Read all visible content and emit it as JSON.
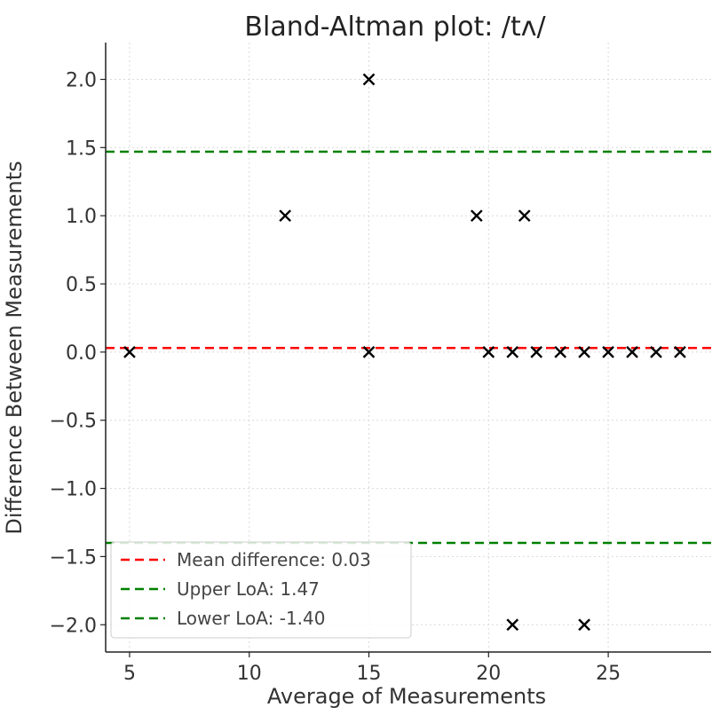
{
  "chart_data": {
    "type": "scatter",
    "title": "Bland-Altman plot: /tʌ/",
    "xlabel": "Average of Measurements",
    "ylabel": "Difference Between Measurements",
    "xlim": [
      4,
      29.3
    ],
    "ylim": [
      -2.2,
      2.27
    ],
    "xticks": [
      5,
      10,
      15,
      20,
      25
    ],
    "yticks": [
      -2.0,
      -1.5,
      -1.0,
      -0.5,
      0.0,
      0.5,
      1.0,
      1.5,
      2.0
    ],
    "grid": true,
    "marker": "x",
    "marker_color": "#000000",
    "points": [
      {
        "x": 5,
        "y": 0
      },
      {
        "x": 11.5,
        "y": 1
      },
      {
        "x": 15,
        "y": 2
      },
      {
        "x": 15,
        "y": 0
      },
      {
        "x": 19.5,
        "y": 1
      },
      {
        "x": 20,
        "y": 0
      },
      {
        "x": 21,
        "y": 0
      },
      {
        "x": 21,
        "y": -2
      },
      {
        "x": 21.5,
        "y": 1
      },
      {
        "x": 22,
        "y": 0
      },
      {
        "x": 23,
        "y": 0
      },
      {
        "x": 24,
        "y": 0
      },
      {
        "x": 24,
        "y": -2
      },
      {
        "x": 25,
        "y": 0
      },
      {
        "x": 26,
        "y": 0
      },
      {
        "x": 27,
        "y": 0
      },
      {
        "x": 28,
        "y": 0
      }
    ],
    "reference_lines": [
      {
        "name": "mean",
        "value": 0.03,
        "color": "#ff0000",
        "label": "Mean difference: 0.03"
      },
      {
        "name": "upper",
        "value": 1.47,
        "color": "#008000",
        "label": "Upper LoA: 1.47"
      },
      {
        "name": "lower",
        "value": -1.4,
        "color": "#008000",
        "label": "Lower LoA: -1.40"
      }
    ],
    "legend_position": "bottom-left"
  }
}
